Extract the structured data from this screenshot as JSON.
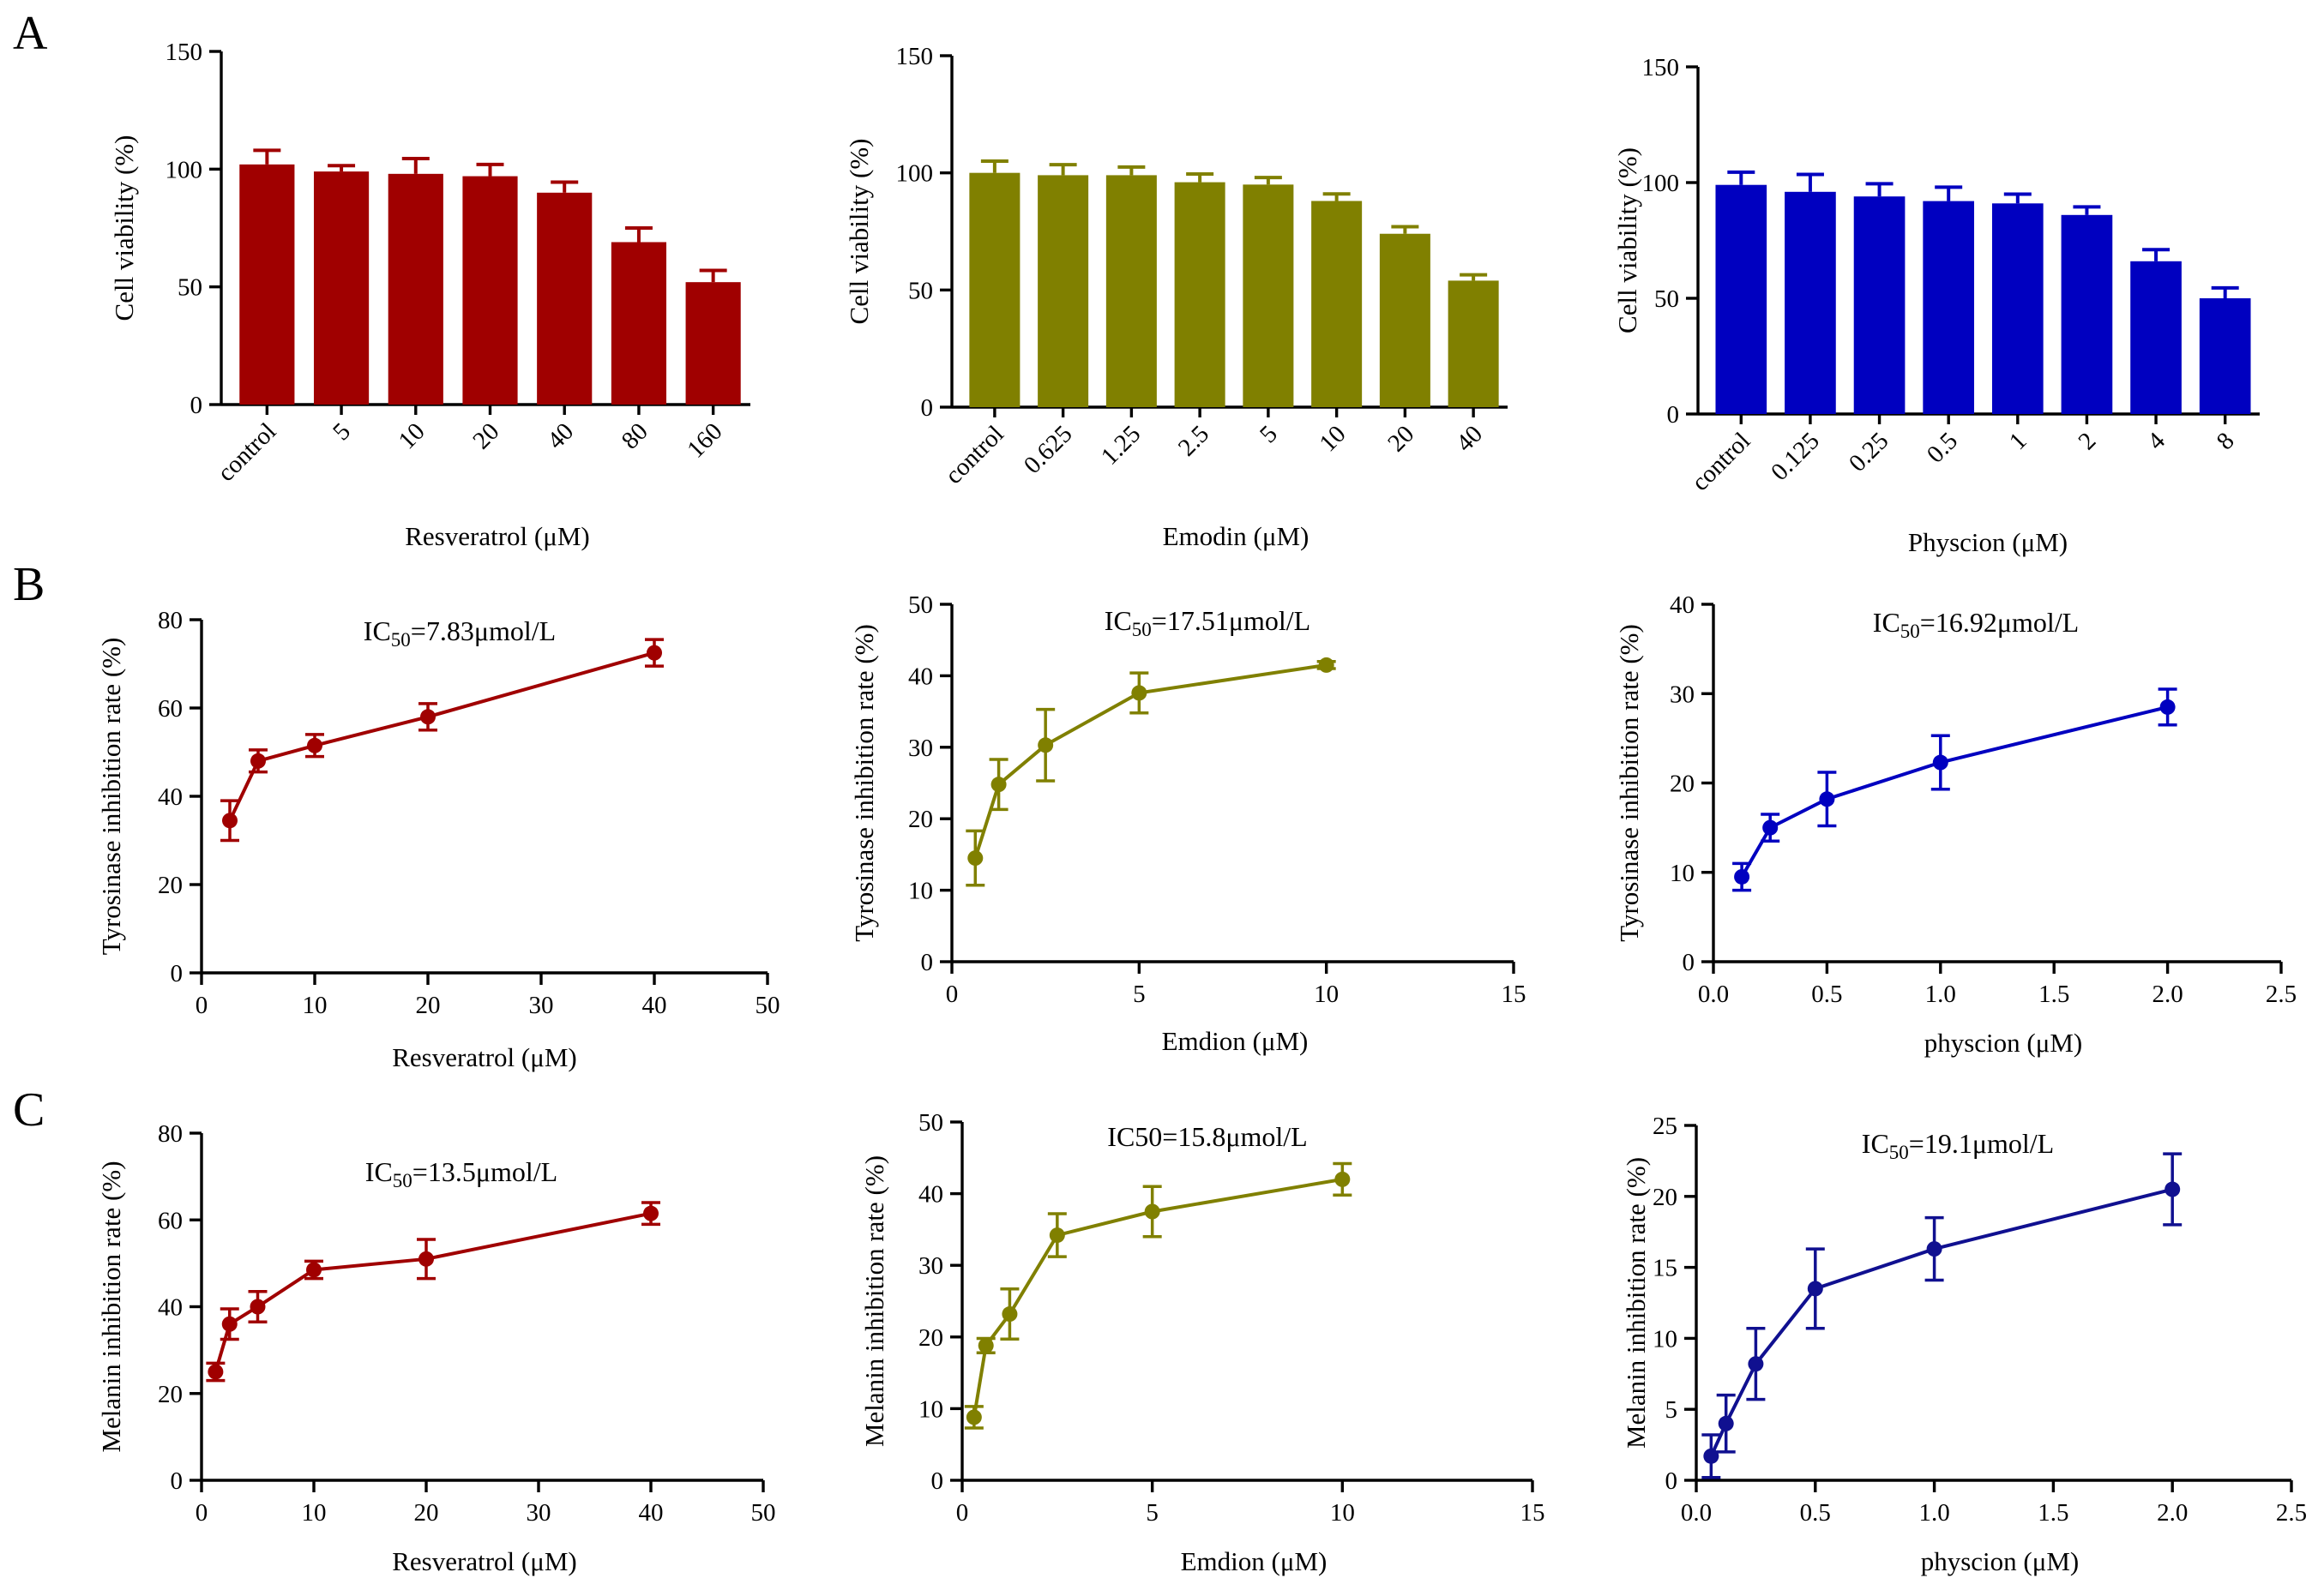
{
  "figure": {
    "panel_letters": [
      "A",
      "B",
      "C"
    ]
  },
  "chart_data": [
    {
      "id": "A1",
      "type": "bar",
      "panel": "A",
      "color": "#a00000",
      "ylabel": "Cell viability (%)",
      "xlabel": "Resveratrol (μM)",
      "ylim": [
        0,
        150
      ],
      "yticks": [
        "0",
        "50",
        "100",
        "150"
      ],
      "categories": [
        "control",
        "5",
        "10",
        "20",
        "40",
        "80",
        "160"
      ],
      "values": [
        102,
        99,
        98,
        97,
        90,
        69,
        52
      ],
      "errors": [
        6,
        2.5,
        6.5,
        5,
        4.5,
        6,
        5
      ]
    },
    {
      "id": "A2",
      "type": "bar",
      "panel": "A",
      "color": "#808000",
      "ylabel": "Cell viability (%)",
      "xlabel": "Emodin (μM)",
      "ylim": [
        0,
        150
      ],
      "yticks": [
        "0",
        "50",
        "100",
        "150"
      ],
      "categories": [
        "control",
        "0.625",
        "1.25",
        "2.5",
        "5",
        "10",
        "20",
        "40"
      ],
      "values": [
        100,
        99,
        99,
        96,
        95,
        88,
        74,
        54
      ],
      "errors": [
        5,
        4.5,
        3.5,
        3.5,
        3,
        3,
        3,
        2.5
      ]
    },
    {
      "id": "A3",
      "type": "bar",
      "panel": "A",
      "color": "#0000c0",
      "ylabel": "Cell viability (%)",
      "xlabel": "Physcion (μM)",
      "ylim": [
        0,
        150
      ],
      "yticks": [
        "0",
        "50",
        "100",
        "150"
      ],
      "categories": [
        "control",
        "0.125",
        "0.25",
        "0.5",
        "1",
        "2",
        "4",
        "8"
      ],
      "values": [
        99,
        96,
        94,
        92,
        91,
        86,
        66,
        50
      ],
      "errors": [
        5.5,
        7.5,
        5.5,
        6,
        4,
        3.5,
        5,
        4.5
      ]
    },
    {
      "id": "B1",
      "type": "line",
      "panel": "B",
      "color": "#a00000",
      "ylabel": "Tyrosinase inhibition rate (%)",
      "xlabel": "Resveratrol (μM)",
      "annotation_prefix": "IC",
      "annotation_sub": "50",
      "annotation_suffix": "=7.83μmol/L",
      "xlim": [
        0,
        50
      ],
      "ylim": [
        0,
        80
      ],
      "xticks": [
        "0",
        "10",
        "20",
        "30",
        "40",
        "50"
      ],
      "yticks": [
        "0",
        "20",
        "40",
        "60",
        "80"
      ],
      "x": [
        2.5,
        5,
        10,
        20,
        40
      ],
      "y": [
        34.5,
        48,
        51.5,
        58,
        72.5
      ],
      "errors": [
        4.5,
        2.5,
        2.5,
        3,
        3
      ]
    },
    {
      "id": "B2",
      "type": "line",
      "panel": "B",
      "color": "#808000",
      "ylabel": "Tyrosinase inhibition rate (%)",
      "xlabel": "Emdion (μM)",
      "annotation_prefix": "IC",
      "annotation_sub": "50",
      "annotation_suffix": "=17.51μmol/L",
      "xlim": [
        0,
        15
      ],
      "ylim": [
        0,
        50
      ],
      "xticks": [
        "0",
        "5",
        "10",
        "15"
      ],
      "yticks": [
        "0",
        "10",
        "20",
        "30",
        "40",
        "50"
      ],
      "x": [
        0.625,
        1.25,
        2.5,
        5,
        10
      ],
      "y": [
        14.5,
        24.8,
        30.3,
        37.6,
        41.5
      ],
      "errors": [
        3.8,
        3.5,
        5,
        2.8,
        0.5
      ]
    },
    {
      "id": "B3",
      "type": "line",
      "panel": "B",
      "color": "#0000c0",
      "ylabel": "Tyrosinase inhibition rate (%)",
      "xlabel": "physcion (μM)",
      "annotation_prefix": "IC",
      "annotation_sub": "50",
      "annotation_suffix": "=16.92μmol/L",
      "xlim": [
        0,
        2.5
      ],
      "ylim": [
        0,
        40
      ],
      "xticks": [
        "0.0",
        "0.5",
        "1.0",
        "1.5",
        "2.0",
        "2.5"
      ],
      "yticks": [
        "0",
        "10",
        "20",
        "30",
        "40"
      ],
      "x": [
        0.125,
        0.25,
        0.5,
        1,
        2
      ],
      "y": [
        9.5,
        15,
        18.2,
        22.3,
        28.5
      ],
      "errors": [
        1.5,
        1.5,
        3,
        3,
        2
      ]
    },
    {
      "id": "C1",
      "type": "line",
      "panel": "C",
      "color": "#a00000",
      "ylabel": "Melanin inhibition rate (%)",
      "xlabel": "Resveratrol (μM)",
      "annotation_prefix": "IC",
      "annotation_sub": "50",
      "annotation_suffix": "=13.5μmol/L",
      "xlim": [
        0,
        50
      ],
      "ylim": [
        0,
        80
      ],
      "xticks": [
        "0",
        "10",
        "20",
        "30",
        "40",
        "50"
      ],
      "yticks": [
        "0",
        "20",
        "40",
        "60",
        "80"
      ],
      "x": [
        1.25,
        2.5,
        5,
        10,
        20,
        40
      ],
      "y": [
        25,
        36,
        40,
        48.5,
        51,
        61.5
      ],
      "errors": [
        2,
        3.5,
        3.5,
        2,
        4.5,
        2.5
      ]
    },
    {
      "id": "C2",
      "type": "line",
      "panel": "C",
      "color": "#808000",
      "ylabel": "Melanin inhibition rate (%)",
      "xlabel": "Emdion (μM)",
      "annotation_prefix": "IC50=15.8μmol/L",
      "annotation_sub": "",
      "annotation_suffix": "",
      "xlim": [
        0,
        15
      ],
      "ylim": [
        0,
        50
      ],
      "xticks": [
        "0",
        "5",
        "10",
        "15"
      ],
      "yticks": [
        "0",
        "10",
        "20",
        "30",
        "40",
        "50"
      ],
      "x": [
        0.3125,
        0.625,
        1.25,
        2.5,
        5,
        10
      ],
      "y": [
        8.8,
        18.8,
        23.2,
        34.2,
        37.5,
        42
      ],
      "errors": [
        1.5,
        1,
        3.5,
        3,
        3.5,
        2.2
      ]
    },
    {
      "id": "C3",
      "type": "line",
      "panel": "C",
      "color": "#101090",
      "ylabel": "Melanin inhibition rate (%)",
      "xlabel": "physcion (μM)",
      "annotation_prefix": "IC",
      "annotation_sub": "50",
      "annotation_suffix": "=19.1μmol/L",
      "xlim": [
        0,
        2.5
      ],
      "ylim": [
        0,
        25
      ],
      "xticks": [
        "0.0",
        "0.5",
        "1.0",
        "1.5",
        "2.0",
        "2.5"
      ],
      "yticks": [
        "0",
        "5",
        "10",
        "15",
        "20",
        "25"
      ],
      "x": [
        0.0625,
        0.125,
        0.25,
        0.5,
        1,
        2
      ],
      "y": [
        1.7,
        4,
        8.2,
        13.5,
        16.3,
        20.5
      ],
      "errors": [
        1.5,
        2,
        2.5,
        2.8,
        2.2,
        2.5
      ]
    }
  ]
}
